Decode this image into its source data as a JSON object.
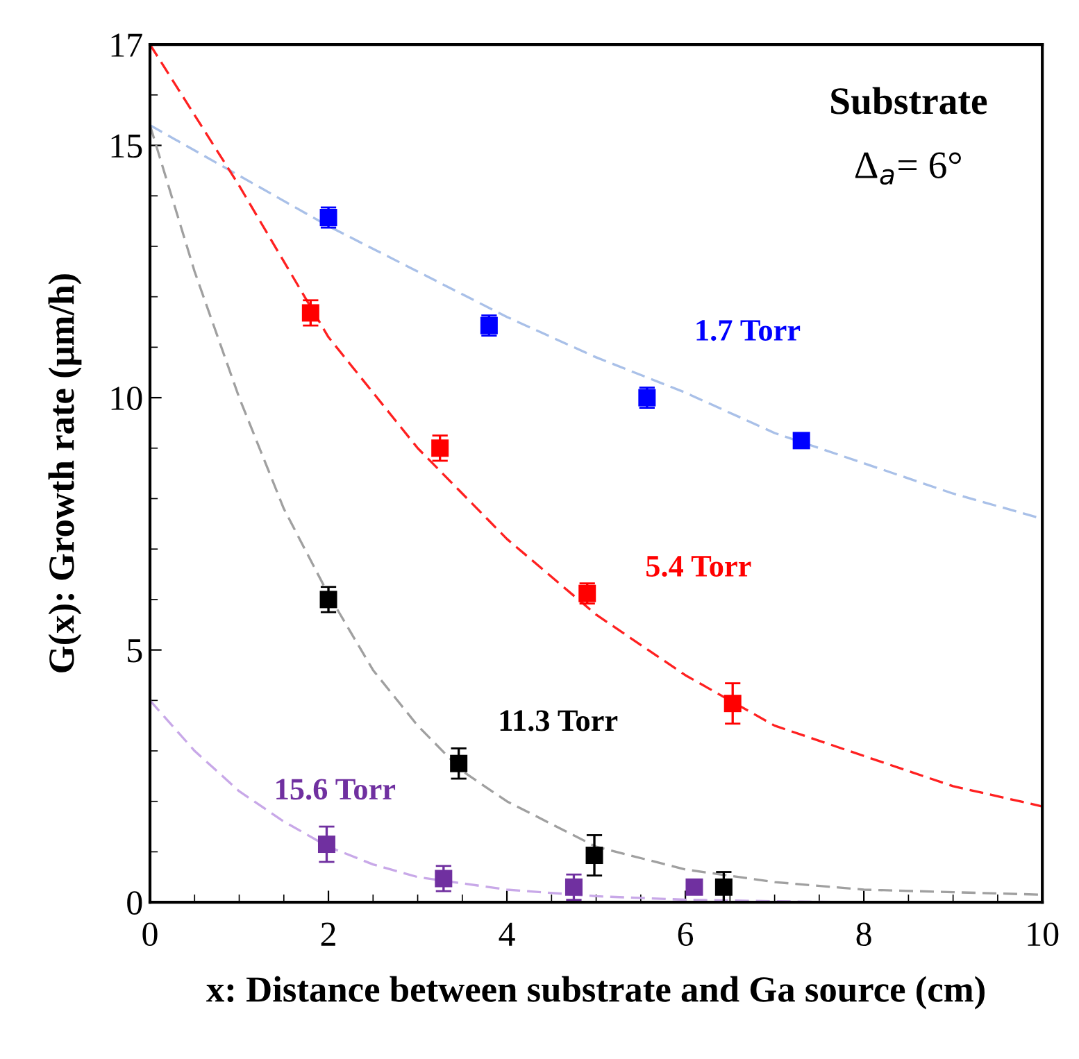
{
  "chart_data": {
    "type": "scatter",
    "xlabel": "x: Distance between substrate and Ga source (cm)",
    "ylabel": "G(x): Growth rate (μm/h)",
    "xlim": [
      0,
      10
    ],
    "xticks": [
      0,
      2,
      4,
      6,
      8,
      10
    ],
    "ylim": [
      0,
      17
    ],
    "yticks": [
      0,
      5,
      10,
      15,
      17
    ],
    "grid": false,
    "legend": false,
    "annotations": [
      "Substrate",
      "Δ$_{a}$= 6°"
    ],
    "series": [
      {
        "name": "1.7 Torr",
        "marker": "square",
        "color": "#0000ff",
        "x": [
          2.0,
          3.8,
          5.57,
          7.3
        ],
        "values": [
          13.57,
          11.43,
          10.0,
          9.15
        ],
        "errors": [
          0.2,
          0.2,
          0.2,
          0.1
        ]
      },
      {
        "name": "5.4 Torr",
        "marker": "square",
        "color": "#ff0000",
        "x": [
          1.8,
          3.25,
          4.9,
          6.53
        ],
        "values": [
          11.68,
          9.0,
          6.12,
          3.94
        ],
        "errors": [
          0.25,
          0.25,
          0.2,
          0.4
        ]
      },
      {
        "name": "11.3 Torr",
        "marker": "square",
        "color": "#000000",
        "x": [
          2.0,
          3.46,
          4.98,
          6.43
        ],
        "values": [
          6.0,
          2.75,
          0.93,
          0.3
        ],
        "errors": [
          0.25,
          0.3,
          0.4,
          0.3
        ]
      },
      {
        "name": "15.6 Torr",
        "marker": "square",
        "color": "#7030a0",
        "x": [
          1.98,
          3.29,
          4.75,
          6.1
        ],
        "values": [
          1.15,
          0.47,
          0.3,
          0.3
        ],
        "errors": [
          0.35,
          0.25,
          0.25,
          0.1
        ]
      },
      {
        "type": "line",
        "line_style": "dashed",
        "color": "#a9c0e8",
        "x": [
          0,
          1,
          2,
          3,
          4,
          5,
          6,
          7,
          8,
          9,
          10
        ],
        "values": [
          15.4,
          14.4,
          13.4,
          12.5,
          11.6,
          10.8,
          10.1,
          9.3,
          8.7,
          8.1,
          7.6
        ]
      },
      {
        "type": "line",
        "line_style": "dashed",
        "color": "#ff2020",
        "x": [
          0,
          1,
          2,
          3,
          4,
          5,
          6,
          7,
          8,
          9,
          10
        ],
        "values": [
          17.0,
          14.2,
          11.2,
          9.0,
          7.2,
          5.7,
          4.5,
          3.5,
          2.9,
          2.3,
          1.9
        ]
      },
      {
        "type": "line",
        "line_style": "dashed",
        "color": "#a0a0a0",
        "x": [
          0,
          0.5,
          1,
          1.5,
          2,
          2.5,
          3,
          3.5,
          4,
          5,
          6,
          7,
          8,
          9,
          10
        ],
        "values": [
          15.4,
          12.5,
          10.0,
          7.8,
          6.1,
          4.6,
          3.5,
          2.6,
          2.0,
          1.1,
          0.65,
          0.4,
          0.25,
          0.2,
          0.15
        ]
      },
      {
        "type": "line",
        "line_style": "dashed",
        "color": "#c8a8e8",
        "x": [
          0,
          0.5,
          1,
          1.5,
          2,
          2.5,
          3,
          4,
          5,
          6,
          7,
          8,
          10
        ],
        "values": [
          4.0,
          3.0,
          2.2,
          1.6,
          1.1,
          0.75,
          0.5,
          0.25,
          0.12,
          0.05,
          0.02,
          0,
          0
        ]
      }
    ]
  }
}
